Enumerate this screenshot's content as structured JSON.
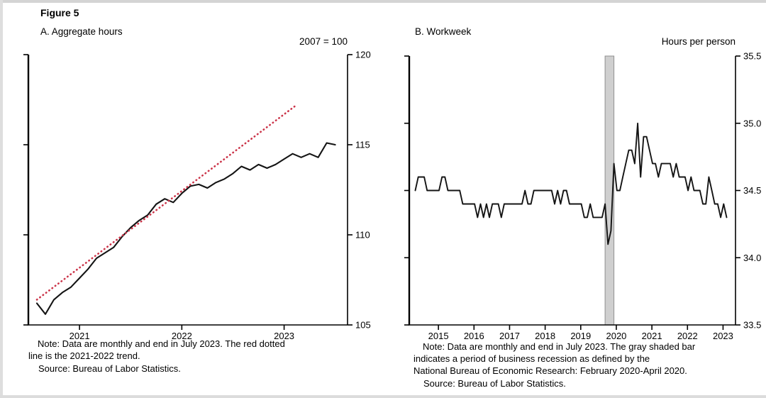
{
  "figure_label": "Figure 5",
  "colors": {
    "data_line": "#141414",
    "trend_line": "#cb3449",
    "recession_fill": "#cfcfcf",
    "recession_border": "#8f8f8f",
    "axis": "#000000"
  },
  "chart_data": [
    {
      "id": "aggregate-hours",
      "type": "line",
      "title": "A. Aggregate hours",
      "axis_unit_label": "2007 = 100",
      "xlim": [
        2020.5,
        2023.62
      ],
      "ylim": [
        105,
        120
      ],
      "ytick_labels": [
        "105",
        "110",
        "115",
        "120"
      ],
      "xtick_labels": [
        "2021",
        "2022",
        "2023"
      ],
      "grid": false,
      "legend": "none",
      "series": [
        {
          "name": "Aggregate hours index, monthly",
          "style": "solid",
          "color_key": "data_line",
          "x_start": 2020.583,
          "x_step": 0.0833333,
          "values": [
            106.2,
            105.6,
            106.4,
            106.8,
            107.1,
            107.6,
            108.1,
            108.7,
            109.0,
            109.3,
            109.9,
            110.4,
            110.8,
            111.1,
            111.7,
            112.0,
            111.8,
            112.3,
            112.7,
            112.8,
            112.6,
            112.9,
            113.1,
            113.4,
            113.8,
            113.6,
            113.9,
            113.7,
            113.9,
            114.2,
            114.5,
            114.3,
            114.5,
            114.3,
            115.1,
            115.0
          ]
        },
        {
          "name": "2021-2022 trend",
          "style": "dotted",
          "color_key": "trend_line",
          "x": [
            2020.583,
            2023.12
          ],
          "y": [
            106.4,
            117.2
          ]
        }
      ],
      "note": "Note: Data are monthly and end in July 2023. The red dotted\nline is the 2021-2022 trend.",
      "source": "Source: Bureau of Labor Statistics."
    },
    {
      "id": "workweek",
      "type": "line",
      "title": "B. Workweek",
      "axis_unit_label": "Hours per person",
      "xlim": [
        2014.58,
        2023.75
      ],
      "ylim": [
        33.5,
        35.5
      ],
      "ytick_labels": [
        "33.5",
        "34.0",
        "34.5",
        "35.0",
        "35.5"
      ],
      "xtick_labels": [
        "2015",
        "2016",
        "2017",
        "2018",
        "2019",
        "2020",
        "2021",
        "2022",
        "2023"
      ],
      "grid": false,
      "legend": "none",
      "recession_band": {
        "from": 2020.083,
        "to": 2020.333,
        "meaning": "NBER business recession: February 2020-April 2020"
      },
      "series": [
        {
          "name": "Average weekly hours per person, monthly",
          "style": "solid",
          "color_key": "data_line",
          "x_start": 2014.75,
          "x_step": 0.0833333,
          "values": [
            34.5,
            34.6,
            34.6,
            34.6,
            34.5,
            34.5,
            34.5,
            34.5,
            34.5,
            34.6,
            34.6,
            34.5,
            34.5,
            34.5,
            34.5,
            34.5,
            34.4,
            34.4,
            34.4,
            34.4,
            34.4,
            34.3,
            34.4,
            34.3,
            34.4,
            34.3,
            34.4,
            34.4,
            34.4,
            34.3,
            34.4,
            34.4,
            34.4,
            34.4,
            34.4,
            34.4,
            34.4,
            34.5,
            34.4,
            34.4,
            34.5,
            34.5,
            34.5,
            34.5,
            34.5,
            34.5,
            34.5,
            34.4,
            34.5,
            34.4,
            34.5,
            34.5,
            34.4,
            34.4,
            34.4,
            34.4,
            34.4,
            34.3,
            34.3,
            34.4,
            34.3,
            34.3,
            34.3,
            34.3,
            34.4,
            34.1,
            34.2,
            34.7,
            34.5,
            34.5,
            34.6,
            34.7,
            34.8,
            34.8,
            34.7,
            35.0,
            34.6,
            34.9,
            34.9,
            34.8,
            34.7,
            34.7,
            34.6,
            34.7,
            34.7,
            34.7,
            34.7,
            34.6,
            34.7,
            34.6,
            34.6,
            34.6,
            34.5,
            34.6,
            34.5,
            34.5,
            34.5,
            34.4,
            34.4,
            34.6,
            34.5,
            34.4,
            34.4,
            34.3,
            34.4,
            34.3
          ]
        }
      ],
      "note": "Note: Data are monthly and end in July 2023. The gray shaded bar\nindicates a period of business recession as defined by the\nNational Bureau of Economic Research: February 2020-April 2020.",
      "source": "Source: Bureau of Labor Statistics."
    }
  ]
}
